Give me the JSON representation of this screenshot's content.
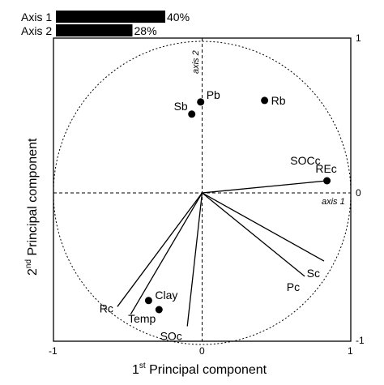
{
  "chart_data": {
    "type": "biplot",
    "xlabel": "1st Principal component",
    "xlabel_main": "1",
    "xlabel_sup": "st",
    "xlabel_rest": " Principal component",
    "ylabel_main": "2",
    "ylabel_sup": "nd",
    "ylabel_rest": " Principal component",
    "xlim": [
      -1,
      1
    ],
    "ylim": [
      -1,
      1
    ],
    "x_ticks": [
      "-1",
      "0",
      "1"
    ],
    "y_ticks_right": [
      "1",
      "0",
      "-1"
    ],
    "axis1_label": "axis 1",
    "axis2_label": "axis 2",
    "explained_variance": [
      {
        "name": "Axis 1",
        "value": 40,
        "label": "40%"
      },
      {
        "name": "Axis 2",
        "value": 28,
        "label": "28%"
      }
    ],
    "vectors": [
      {
        "name": "REc",
        "x": 0.84,
        "y": 0.08
      },
      {
        "name": "SOCc",
        "x": 0.84,
        "y": 0.08
      },
      {
        "name": "Sc",
        "x": 0.82,
        "y": -0.45
      },
      {
        "name": "Pc",
        "x": 0.69,
        "y": -0.55
      },
      {
        "name": "Rc",
        "x": -0.57,
        "y": -0.75
      },
      {
        "name": "Temp",
        "x": -0.48,
        "y": -0.8
      },
      {
        "name": "SOc",
        "x": -0.1,
        "y": -0.88
      }
    ],
    "points": [
      {
        "name": "Pb",
        "x": -0.01,
        "y": 0.6
      },
      {
        "name": "Sb",
        "x": -0.07,
        "y": 0.52
      },
      {
        "name": "Rb",
        "x": 0.42,
        "y": 0.61
      },
      {
        "name": "Clay",
        "x": -0.36,
        "y": -0.71
      },
      {
        "name": "Temp",
        "x": -0.29,
        "y": -0.77
      },
      {
        "name": "REc",
        "x": 0.84,
        "y": 0.08
      }
    ]
  }
}
